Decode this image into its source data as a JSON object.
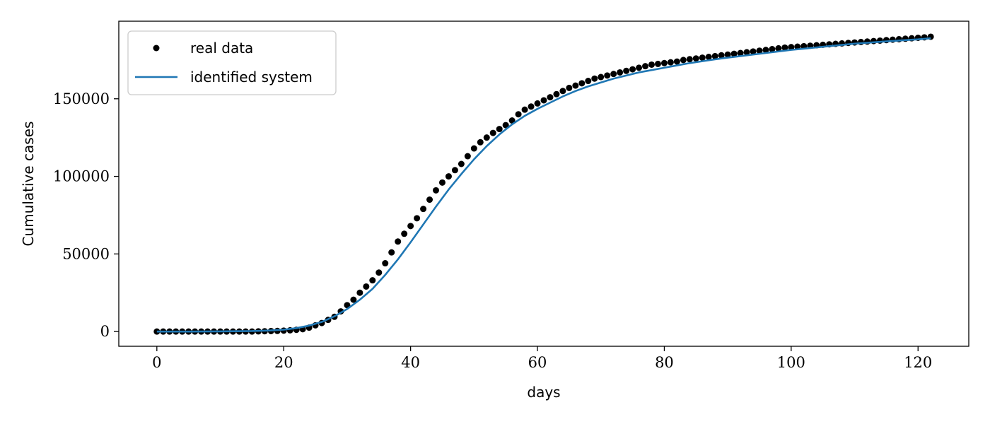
{
  "chart_data": {
    "type": "line",
    "title": "",
    "xlabel": "days",
    "ylabel": "Cumulative cases",
    "xlim": [
      -6,
      128
    ],
    "ylim": [
      -9500,
      200000
    ],
    "xticks": [
      0,
      20,
      40,
      60,
      80,
      100,
      120
    ],
    "yticks": [
      0,
      50000,
      100000,
      150000
    ],
    "grid": false,
    "legend_position": "top-left",
    "series": [
      {
        "name": "real data",
        "kind": "scatter",
        "color": "#000000",
        "x": [
          0,
          1,
          2,
          3,
          4,
          5,
          6,
          7,
          8,
          9,
          10,
          11,
          12,
          13,
          14,
          15,
          16,
          17,
          18,
          19,
          20,
          21,
          22,
          23,
          24,
          25,
          26,
          27,
          28,
          29,
          30,
          31,
          32,
          33,
          34,
          35,
          36,
          37,
          38,
          39,
          40,
          41,
          42,
          43,
          44,
          45,
          46,
          47,
          48,
          49,
          50,
          51,
          52,
          53,
          54,
          55,
          56,
          57,
          58,
          59,
          60,
          61,
          62,
          63,
          64,
          65,
          66,
          67,
          68,
          69,
          70,
          71,
          72,
          73,
          74,
          75,
          76,
          77,
          78,
          79,
          80,
          81,
          82,
          83,
          84,
          85,
          86,
          87,
          88,
          89,
          90,
          91,
          92,
          93,
          94,
          95,
          96,
          97,
          98,
          99,
          100,
          101,
          102,
          103,
          104,
          105,
          106,
          107,
          108,
          109,
          110,
          111,
          112,
          113,
          114,
          115,
          116,
          117,
          118,
          119,
          120,
          121,
          122
        ],
        "y": [
          0,
          0,
          0,
          0,
          0,
          0,
          0,
          0,
          0,
          0,
          0,
          0,
          0,
          0,
          0,
          0,
          100,
          200,
          300,
          400,
          600,
          800,
          1100,
          1500,
          2500,
          4000,
          5500,
          7500,
          9500,
          13000,
          17000,
          20500,
          25000,
          29000,
          33000,
          38000,
          44000,
          51000,
          58000,
          63000,
          68000,
          73000,
          79000,
          85000,
          91000,
          96000,
          100000,
          104000,
          108000,
          113000,
          118000,
          122000,
          125000,
          128000,
          130500,
          133000,
          136000,
          140000,
          143000,
          145000,
          147000,
          149000,
          151000,
          153000,
          155000,
          157000,
          158500,
          160000,
          161500,
          163000,
          164000,
          165000,
          166000,
          167000,
          168000,
          169000,
          170000,
          171000,
          172000,
          172500,
          173000,
          173500,
          174000,
          175000,
          175500,
          176000,
          176500,
          177000,
          177500,
          178000,
          178500,
          179000,
          179500,
          180000,
          180500,
          181000,
          181500,
          182000,
          182500,
          183000,
          183300,
          183600,
          183900,
          184200,
          184500,
          184800,
          185100,
          185400,
          185700,
          186000,
          186300,
          186600,
          186900,
          187200,
          187500,
          187800,
          188100,
          188400,
          188700,
          189000,
          189300,
          189600,
          190000
        ]
      },
      {
        "name": "identified system",
        "kind": "line",
        "color": "#1f77b4",
        "x": [
          0,
          5,
          10,
          15,
          18,
          20,
          22,
          24,
          26,
          28,
          30,
          32,
          34,
          36,
          38,
          40,
          42,
          44,
          46,
          48,
          50,
          52,
          54,
          56,
          58,
          60,
          62,
          64,
          66,
          68,
          70,
          72,
          74,
          76,
          78,
          80,
          82,
          84,
          86,
          88,
          90,
          95,
          100,
          105,
          110,
          115,
          120,
          122
        ],
        "y": [
          0,
          0,
          100,
          300,
          700,
          1200,
          2200,
          3800,
          6200,
          9800,
          14500,
          20500,
          27500,
          36500,
          46500,
          57500,
          69000,
          80500,
          91500,
          101500,
          111000,
          119500,
          127000,
          133500,
          139000,
          143500,
          147500,
          151500,
          155000,
          158000,
          160500,
          163000,
          165000,
          167000,
          168500,
          170000,
          171500,
          173000,
          174200,
          175400,
          176500,
          179000,
          181500,
          183500,
          185500,
          187000,
          188300,
          189000
        ]
      }
    ]
  }
}
